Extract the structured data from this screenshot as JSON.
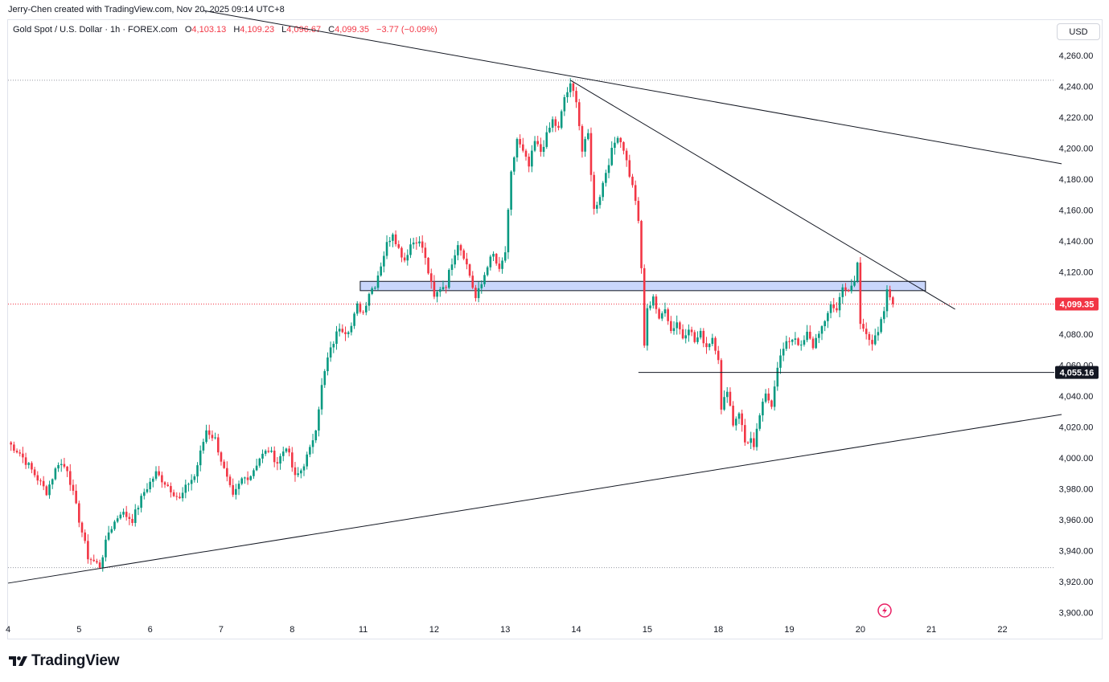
{
  "header": {
    "creator_line": "Jerry-Chen created with TradingView.com, Nov 20, 2025 09:14 UTC+8"
  },
  "legend": {
    "symbol": "Gold Spot / U.S. Dollar · 1h · FOREX.com",
    "open_label": "O",
    "open_value": "4,103.13",
    "high_label": "H",
    "high_value": "4,109.23",
    "low_label": "L",
    "low_value": "4,096.67",
    "close_label": "C",
    "close_value": "4,099.35",
    "change": "−3.77 (−0.09%)"
  },
  "currency_button": "USD",
  "brand": {
    "name": "TradingView"
  },
  "colors": {
    "up": "#089981",
    "down": "#f23645",
    "trendline": "#131722",
    "zone_fill": "#c9d6fb",
    "zone_border": "#131722",
    "grid_dotted": "#9598a1",
    "last_price_line": "#f23645"
  },
  "chart_data": {
    "type": "candlestick",
    "symbol": "Gold Spot / U.S. Dollar",
    "interval": "1h",
    "ylim": [
      3895,
      4275
    ],
    "y_ticks": [
      "4,260.00",
      "4,240.00",
      "4,220.00",
      "4,200.00",
      "4,180.00",
      "4,160.00",
      "4,140.00",
      "4,120.00",
      "4,100.00",
      "4,080.00",
      "4,060.00",
      "4,040.00",
      "4,020.00",
      "4,000.00",
      "3,980.00",
      "3,960.00",
      "3,940.00",
      "3,920.00",
      "3,900.00"
    ],
    "x_ticks": [
      "4",
      "5",
      "6",
      "7",
      "8",
      "11",
      "12",
      "13",
      "14",
      "15",
      "18",
      "19",
      "20",
      "21",
      "22"
    ],
    "x_tick_index": [
      0,
      24,
      48,
      72,
      96,
      120,
      144,
      168,
      192,
      216,
      240,
      264,
      288,
      312,
      336
    ],
    "last_bar_index": 299,
    "last_price": 4099.35,
    "last_price_label": "4,099.35",
    "marked_price": 4055.16,
    "marked_price_label": "4,055.16",
    "horizontal_levels": [
      4244.0,
      3929.0
    ],
    "support_line_start_index": 213,
    "resistance_zone": {
      "x_start_index": 119,
      "x_end_index": 310,
      "y_low": 4108,
      "y_high": 4114
    },
    "trendlines": [
      {
        "name": "upper-long",
        "points": [
          [
            66,
            4289
          ],
          [
            356,
            4190
          ]
        ]
      },
      {
        "name": "upper-short",
        "points": [
          [
            190,
            4244
          ],
          [
            320,
            4096
          ]
        ]
      },
      {
        "name": "lower",
        "points": [
          [
            0,
            3919
          ],
          [
            356,
            4028
          ]
        ]
      }
    ],
    "anchors": [
      [
        0,
        4010
      ],
      [
        4,
        4003
      ],
      [
        8,
        3992
      ],
      [
        13,
        3978
      ],
      [
        17,
        3997
      ],
      [
        20,
        3993
      ],
      [
        24,
        3960
      ],
      [
        27,
        3936
      ],
      [
        31,
        3930
      ],
      [
        34,
        3952
      ],
      [
        38,
        3965
      ],
      [
        42,
        3960
      ],
      [
        46,
        3978
      ],
      [
        50,
        3990
      ],
      [
        54,
        3982
      ],
      [
        58,
        3973
      ],
      [
        61,
        3984
      ],
      [
        63,
        3988
      ],
      [
        65,
        4003
      ],
      [
        67,
        4018
      ],
      [
        70,
        4012
      ],
      [
        73,
        3992
      ],
      [
        76,
        3974
      ],
      [
        79,
        3986
      ],
      [
        82,
        3989
      ],
      [
        85,
        4000
      ],
      [
        88,
        4005
      ],
      [
        91,
        3997
      ],
      [
        94,
        4008
      ],
      [
        97,
        3987
      ],
      [
        99,
        3992
      ],
      [
        102,
        4005
      ],
      [
        104,
        4020
      ],
      [
        106,
        4046
      ],
      [
        108,
        4064
      ],
      [
        110,
        4075
      ],
      [
        112,
        4085
      ],
      [
        114,
        4082
      ],
      [
        116,
        4085
      ],
      [
        118,
        4098
      ],
      [
        120,
        4094
      ],
      [
        122,
        4107
      ],
      [
        124,
        4112
      ],
      [
        126,
        4125
      ],
      [
        128,
        4138
      ],
      [
        130,
        4146
      ],
      [
        132,
        4135
      ],
      [
        134,
        4128
      ],
      [
        136,
        4138
      ],
      [
        138,
        4141
      ],
      [
        140,
        4136
      ],
      [
        142,
        4120
      ],
      [
        144,
        4103
      ],
      [
        146,
        4110
      ],
      [
        148,
        4112
      ],
      [
        150,
        4127
      ],
      [
        152,
        4139
      ],
      [
        154,
        4131
      ],
      [
        156,
        4118
      ],
      [
        158,
        4103
      ],
      [
        160,
        4112
      ],
      [
        162,
        4125
      ],
      [
        164,
        4131
      ],
      [
        166,
        4120
      ],
      [
        168,
        4133
      ],
      [
        170,
        4183
      ],
      [
        172,
        4206
      ],
      [
        174,
        4197
      ],
      [
        176,
        4188
      ],
      [
        178,
        4204
      ],
      [
        180,
        4198
      ],
      [
        182,
        4208
      ],
      [
        184,
        4218
      ],
      [
        186,
        4212
      ],
      [
        188,
        4233
      ],
      [
        190,
        4240
      ],
      [
        192,
        4232
      ],
      [
        194,
        4198
      ],
      [
        196,
        4209
      ],
      [
        198,
        4160
      ],
      [
        200,
        4170
      ],
      [
        202,
        4185
      ],
      [
        204,
        4198
      ],
      [
        206,
        4209
      ],
      [
        208,
        4200
      ],
      [
        210,
        4183
      ],
      [
        212,
        4167
      ],
      [
        213,
        4151
      ],
      [
        214,
        4122
      ],
      [
        215,
        4073
      ],
      [
        216,
        4095
      ],
      [
        218,
        4105
      ],
      [
        220,
        4088
      ],
      [
        222,
        4098
      ],
      [
        224,
        4082
      ],
      [
        226,
        4088
      ],
      [
        228,
        4078
      ],
      [
        230,
        4085
      ],
      [
        232,
        4075
      ],
      [
        234,
        4080
      ],
      [
        236,
        4072
      ],
      [
        238,
        4078
      ],
      [
        240,
        4065
      ],
      [
        241,
        4030
      ],
      [
        243,
        4045
      ],
      [
        245,
        4022
      ],
      [
        247,
        4030
      ],
      [
        249,
        4010
      ],
      [
        251,
        4012
      ],
      [
        252,
        4005
      ],
      [
        254,
        4028
      ],
      [
        256,
        4040
      ],
      [
        258,
        4035
      ],
      [
        260,
        4060
      ],
      [
        262,
        4070
      ],
      [
        264,
        4076
      ],
      [
        266,
        4078
      ],
      [
        268,
        4071
      ],
      [
        270,
        4080
      ],
      [
        272,
        4072
      ],
      [
        274,
        4082
      ],
      [
        276,
        4086
      ],
      [
        278,
        4100
      ],
      [
        280,
        4095
      ],
      [
        282,
        4112
      ],
      [
        284,
        4106
      ],
      [
        286,
        4114
      ],
      [
        287,
        4126
      ],
      [
        288,
        4086
      ],
      [
        290,
        4082
      ],
      [
        292,
        4074
      ],
      [
        294,
        4080
      ],
      [
        296,
        4095
      ],
      [
        297,
        4107
      ],
      [
        298,
        4104
      ],
      [
        299,
        4099.35
      ]
    ]
  }
}
